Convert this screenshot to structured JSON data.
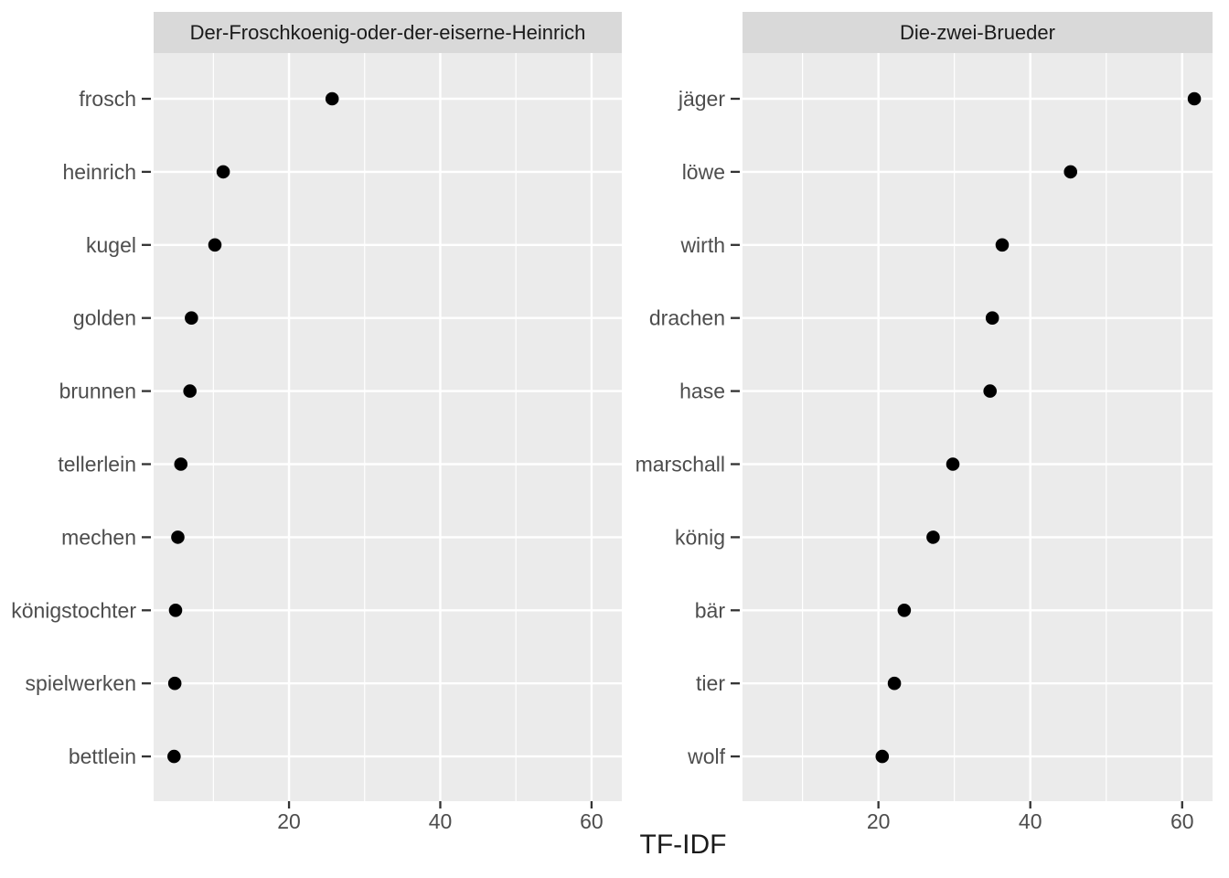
{
  "chart_data": {
    "type": "scatter",
    "title": "",
    "xlabel": "TF-IDF",
    "ylabel": "",
    "xlim": [
      2.1,
      64.0
    ],
    "x_major_ticks": [
      20,
      40,
      60
    ],
    "x_minor_gridlines": [
      10,
      30,
      50
    ],
    "grid": true,
    "legend": "none",
    "facets": [
      {
        "title": "Der-Froschkoenig-oder-der-eiserne-Heinrich",
        "categories": [
          "frosch",
          "heinrich",
          "kugel",
          "golden",
          "brunnen",
          "tellerlein",
          "mechen",
          "königstochter",
          "spielwerken",
          "bettlein"
        ],
        "values": [
          25.7,
          11.3,
          10.2,
          7.1,
          6.9,
          5.7,
          5.3,
          5.0,
          4.9,
          4.8
        ]
      },
      {
        "title": "Die-zwei-Brueder",
        "categories": [
          "jäger",
          "löwe",
          "wirth",
          "drachen",
          "hase",
          "marschall",
          "könig",
          "bär",
          "tier",
          "wolf"
        ],
        "values": [
          61.6,
          45.3,
          36.3,
          35.0,
          34.7,
          29.8,
          27.2,
          23.4,
          22.1,
          20.5
        ]
      }
    ]
  },
  "style": {
    "background": "#ffffff",
    "strip_bg": "#d9d9d9",
    "strip_text_color": "#1a1a1a",
    "panel_bg": "#ebebeb",
    "grid_color": "#ffffff",
    "point_color": "#000000",
    "axis_text_color": "#4d4d4d",
    "axis_title_color": "#1a1a1a",
    "tick_mark_color": "#333333"
  }
}
